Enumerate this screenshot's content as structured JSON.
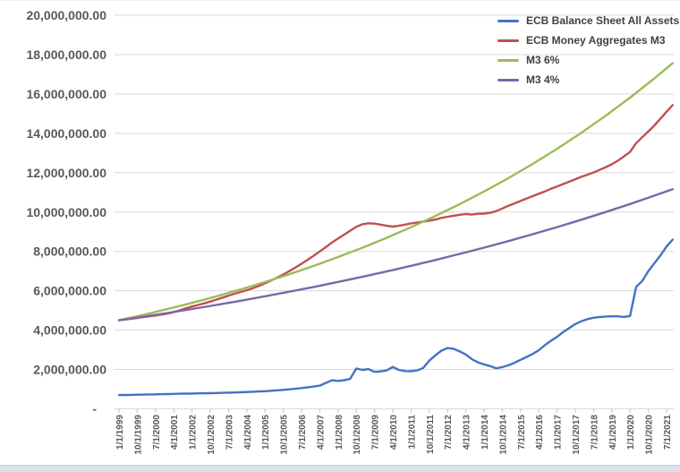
{
  "chart_data": {
    "type": "line",
    "title": "",
    "xlabel": "",
    "ylabel": "",
    "ylim": [
      0,
      20000000
    ],
    "grid": "horizontal",
    "legend_position": "top-right",
    "colors": {
      "gridline": "#d9d9d9",
      "axis": "#d9d9d9",
      "tick": "#bfbfbf",
      "axis_text": "#595959",
      "legend_text": "#404040"
    },
    "y_ticks": [
      {
        "value": 20000000,
        "label": "20,000,000.00"
      },
      {
        "value": 18000000,
        "label": "18,000,000.00"
      },
      {
        "value": 16000000,
        "label": "16,000,000.00"
      },
      {
        "value": 14000000,
        "label": "14,000,000.00"
      },
      {
        "value": 12000000,
        "label": "12,000,000.00"
      },
      {
        "value": 10000000,
        "label": "10,000,000.00"
      },
      {
        "value": 8000000,
        "label": "8,000,000.00"
      },
      {
        "value": 6000000,
        "label": "6,000,000.00"
      },
      {
        "value": 4000000,
        "label": "4,000,000.00"
      },
      {
        "value": 2000000,
        "label": "2,000,000.00"
      },
      {
        "value": 0,
        "label": "-"
      }
    ],
    "x_tick_labels": [
      "1/1/1999",
      "10/1/1999",
      "7/1/2000",
      "4/1/2001",
      "1/1/2002",
      "10/1/2002",
      "7/1/2003",
      "4/1/2004",
      "1/1/2005",
      "10/1/2005",
      "7/1/2006",
      "4/1/2007",
      "1/1/2008",
      "10/1/2008",
      "7/1/2009",
      "4/1/2010",
      "1/1/2011",
      "10/1/2011",
      "7/1/2012",
      "4/1/2013",
      "1/1/2014",
      "10/1/2014",
      "7/1/2015",
      "4/1/2016",
      "1/1/2017",
      "10/1/2017",
      "7/1/2018",
      "4/1/2019",
      "1/1/2020",
      "10/1/2020",
      "7/1/2021"
    ],
    "x_tick_step_years": 0.75,
    "series": [
      {
        "name": "ECB Balance Sheet All Assets",
        "color": "#4472c4",
        "x_start_year": 1999.0,
        "x_step_years": 0.25,
        "values": [
          700000,
          705000,
          712000,
          718000,
          725000,
          732000,
          738000,
          745000,
          752000,
          760000,
          768000,
          775000,
          780000,
          786000,
          792000,
          798000,
          805000,
          813000,
          822000,
          832000,
          842000,
          855000,
          868000,
          882000,
          898000,
          918000,
          940000,
          965000,
          990000,
          1020000,
          1055000,
          1095000,
          1135000,
          1180000,
          1320000,
          1450000,
          1420000,
          1450000,
          1530000,
          2050000,
          1980000,
          2020000,
          1880000,
          1900000,
          1950000,
          2130000,
          1980000,
          1920000,
          1910000,
          1950000,
          2080000,
          2450000,
          2720000,
          2960000,
          3090000,
          3050000,
          2920000,
          2760000,
          2520000,
          2360000,
          2260000,
          2170000,
          2060000,
          2120000,
          2210000,
          2340000,
          2490000,
          2640000,
          2790000,
          2980000,
          3240000,
          3460000,
          3660000,
          3900000,
          4110000,
          4310000,
          4450000,
          4560000,
          4630000,
          4670000,
          4690000,
          4700000,
          4700000,
          4670000,
          4720000,
          6200000,
          6500000,
          7000000,
          7400000,
          7800000,
          8250000,
          8600000
        ]
      },
      {
        "name": "ECB Money Aggregates M3",
        "color": "#c0504d",
        "x_start_year": 1999.0,
        "x_step_years": 0.25,
        "values": [
          4500000,
          4540000,
          4580000,
          4620000,
          4660000,
          4700000,
          4740000,
          4790000,
          4840000,
          4920000,
          5010000,
          5110000,
          5200000,
          5280000,
          5360000,
          5450000,
          5550000,
          5650000,
          5750000,
          5850000,
          5940000,
          6030000,
          6130000,
          6250000,
          6380000,
          6520000,
          6670000,
          6830000,
          7000000,
          7180000,
          7370000,
          7570000,
          7780000,
          8000000,
          8220000,
          8450000,
          8650000,
          8850000,
          9050000,
          9250000,
          9380000,
          9430000,
          9410000,
          9360000,
          9300000,
          9260000,
          9300000,
          9360000,
          9420000,
          9470000,
          9510000,
          9560000,
          9620000,
          9700000,
          9760000,
          9810000,
          9860000,
          9900000,
          9870000,
          9910000,
          9920000,
          9960000,
          10050000,
          10180000,
          10320000,
          10440000,
          10560000,
          10690000,
          10810000,
          10930000,
          11050000,
          11180000,
          11300000,
          11420000,
          11540000,
          11670000,
          11790000,
          11900000,
          12010000,
          12140000,
          12280000,
          12430000,
          12610000,
          12830000,
          13050000,
          13500000,
          13800000,
          14100000,
          14400000,
          14750000,
          15100000,
          15430000
        ]
      },
      {
        "name": "M3 6%",
        "color": "#9bbb59",
        "x_start_year": 1999.0,
        "x_offsets_years": [
          0,
          1,
          2,
          3,
          4,
          5,
          6,
          7,
          8,
          9,
          10,
          11,
          12,
          13,
          14,
          15,
          16,
          17,
          18,
          19,
          20,
          21,
          22,
          22.75
        ],
        "growth_rule": "4,500,000 growing 6% per year",
        "values": [
          4500000,
          4777600,
          5072200,
          5385100,
          5717200,
          6069800,
          6444200,
          6841600,
          7263600,
          7711600,
          8187200,
          8692200,
          9228300,
          9797400,
          10401700,
          11043300,
          11724400,
          12447500,
          13215200,
          14030300,
          14895600,
          15814300,
          16789600,
          17560000
        ]
      },
      {
        "name": "M3 4%",
        "color": "#7c67a6",
        "x_start_year": 1999.0,
        "x_offsets_years": [
          0,
          1,
          2,
          3,
          4,
          5,
          6,
          7,
          8,
          9,
          10,
          11,
          12,
          13,
          14,
          15,
          16,
          17,
          18,
          19,
          20,
          21,
          22,
          22.75
        ],
        "growth_rule": "4,500,000 growing 4% per year",
        "values": [
          4500000,
          4683300,
          4874100,
          5072700,
          5279400,
          5494500,
          5718300,
          5951300,
          6193800,
          6446100,
          6708800,
          6982100,
          7266600,
          7562600,
          7870700,
          8191400,
          8525200,
          8872500,
          9234000,
          9610200,
          10001700,
          10409200,
          10833300,
          11162700
        ]
      }
    ]
  }
}
